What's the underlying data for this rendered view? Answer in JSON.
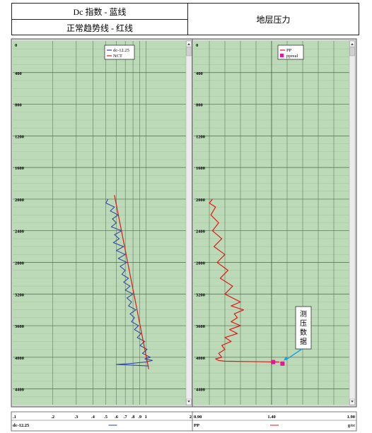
{
  "header": {
    "left_line1": "Dc 指数 - 蓝线",
    "left_line2": "正常趋势线 - 红线",
    "right": "地层压力"
  },
  "colors": {
    "plot_bg": "#bcd9b8",
    "grid_major": "#4a6a48",
    "grid_minor": "#a7c6a3",
    "dc_series": "#2a3f9e",
    "red_series": "#e01818",
    "marker": "#e0189a",
    "annotation_arrow": "#1ea0d8"
  },
  "chart_data": [
    {
      "type": "line",
      "panel": "left",
      "x_scale": "log",
      "xlim": [
        0.1,
        2
      ],
      "ylim": [
        0,
        4600
      ],
      "y_reversed": true,
      "y_ticks": [
        "0",
        "400",
        "800",
        "1200",
        "1600",
        "2000",
        "2400",
        "2800",
        "3200",
        "3600",
        "4000",
        "4400"
      ],
      "x_ticks": [
        ".1",
        ".2",
        ".3",
        ".4",
        ".5",
        ".6",
        ".7",
        ".8",
        ".9",
        "1",
        "2"
      ],
      "x_axis_title": "dc-12.25",
      "legend": [
        "dc-12.25",
        "NCT"
      ],
      "legend_position": "top-right",
      "series": [
        {
          "name": "dc-12.25",
          "x": [
            0.52,
            0.5,
            0.58,
            0.54,
            0.62,
            0.56,
            0.6,
            0.55,
            0.66,
            0.58,
            0.63,
            0.57,
            0.68,
            0.6,
            0.7,
            0.62,
            0.72,
            0.64,
            0.7,
            0.66,
            0.74,
            0.68,
            0.76,
            0.7,
            0.8,
            0.72,
            0.78,
            0.74,
            0.84,
            0.76,
            0.82,
            0.78,
            0.88,
            0.82,
            0.92,
            0.86,
            0.98,
            0.9,
            1.02,
            0.94,
            1.08,
            0.98,
            1.12,
            1.0,
            0.75,
            0.6,
            0.8,
            1.05
          ],
          "y": [
            2000,
            2050,
            2100,
            2150,
            2200,
            2250,
            2300,
            2350,
            2400,
            2450,
            2500,
            2550,
            2600,
            2650,
            2700,
            2750,
            2800,
            2850,
            2900,
            2950,
            3000,
            3050,
            3100,
            3150,
            3200,
            3250,
            3300,
            3350,
            3400,
            3450,
            3500,
            3550,
            3600,
            3650,
            3700,
            3750,
            3800,
            3850,
            3900,
            3950,
            4000,
            4020,
            4040,
            4060,
            4080,
            4090,
            4100,
            4110
          ]
        },
        {
          "name": "NCT",
          "x": [
            0.58,
            1.05
          ],
          "y": [
            1950,
            4150
          ]
        }
      ]
    },
    {
      "type": "line",
      "panel": "right",
      "xlim": [
        0.9,
        1.9
      ],
      "ylim": [
        0,
        4600
      ],
      "y_reversed": true,
      "y_ticks": [
        "0",
        "400",
        "800",
        "1200",
        "1600",
        "2000",
        "2400",
        "2800",
        "3200",
        "3600",
        "4000",
        "4400"
      ],
      "x_ticks": [
        "0.90",
        "1.40",
        "1.90"
      ],
      "x_axis_title": "PP",
      "x_unit": "g/cc",
      "legend": [
        "PP",
        "ppreal"
      ],
      "legend_position": "top-right",
      "annotation": "测压数据",
      "series": [
        {
          "name": "PP",
          "x": [
            1.02,
            1.0,
            1.04,
            1.01,
            1.06,
            1.02,
            1.08,
            1.03,
            1.1,
            1.05,
            1.12,
            1.07,
            1.15,
            1.1,
            1.2,
            1.14,
            1.22,
            1.16,
            1.18,
            1.14,
            1.2,
            1.13,
            1.18,
            1.1,
            1.14,
            1.08,
            1.1,
            1.06,
            1.08,
            1.04,
            1.06,
            1.1,
            1.45
          ],
          "y": [
            2000,
            2050,
            2100,
            2200,
            2300,
            2400,
            2500,
            2600,
            2700,
            2800,
            2900,
            3000,
            3100,
            3200,
            3300,
            3350,
            3400,
            3450,
            3500,
            3550,
            3600,
            3650,
            3700,
            3750,
            3800,
            3850,
            3900,
            3950,
            4000,
            4020,
            4040,
            4050,
            4060
          ]
        },
        {
          "name": "ppreal",
          "x": [
            1.41,
            1.47
          ],
          "y": [
            4060,
            4080
          ]
        }
      ]
    }
  ]
}
